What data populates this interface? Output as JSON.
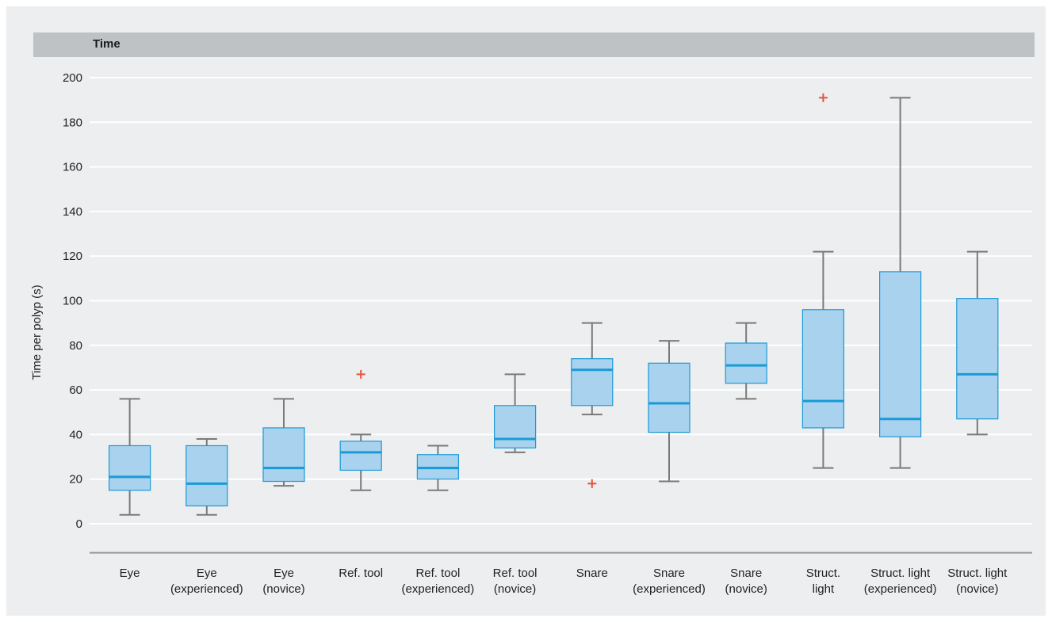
{
  "header": {
    "title": "Time"
  },
  "colors": {
    "box_fill": "#a9d2ee",
    "box_stroke": "#1a9ad6",
    "median": "#1a9ad6",
    "whisker": "#7a7a7a",
    "outlier": "#e2553a",
    "grid": "#ffffff",
    "axis": "#999999"
  },
  "chart_data": {
    "type": "box",
    "title": "Time",
    "ylabel": "Time per polyp (s)",
    "xlabel": "",
    "ylim": [
      -13,
      207
    ],
    "yticks": [
      0,
      20,
      40,
      60,
      80,
      100,
      120,
      140,
      160,
      180,
      200
    ],
    "grid": true,
    "legend": "none",
    "categories": [
      [
        "Eye"
      ],
      [
        "Eye",
        "(experienced)"
      ],
      [
        "Eye",
        "(novice)"
      ],
      [
        "Ref. tool"
      ],
      [
        "Ref. tool",
        "(experienced)"
      ],
      [
        "Ref. tool",
        "(novice)"
      ],
      [
        "Snare"
      ],
      [
        "Snare",
        "(experienced)"
      ],
      [
        "Snare",
        "(novice)"
      ],
      [
        "Struct.",
        "light"
      ],
      [
        "Struct. light",
        "(experienced)"
      ],
      [
        "Struct. light",
        "(novice)"
      ]
    ],
    "boxes": [
      {
        "whisker_low": 4,
        "q1": 15,
        "median": 21,
        "q3": 35,
        "whisker_high": 56,
        "outliers": []
      },
      {
        "whisker_low": 4,
        "q1": 8,
        "median": 18,
        "q3": 35,
        "whisker_high": 38,
        "outliers": []
      },
      {
        "whisker_low": 17,
        "q1": 19,
        "median": 25,
        "q3": 43,
        "whisker_high": 56,
        "outliers": []
      },
      {
        "whisker_low": 15,
        "q1": 24,
        "median": 32,
        "q3": 37,
        "whisker_high": 40,
        "outliers": [
          67
        ]
      },
      {
        "whisker_low": 15,
        "q1": 20,
        "median": 25,
        "q3": 31,
        "whisker_high": 35,
        "outliers": []
      },
      {
        "whisker_low": 32,
        "q1": 34,
        "median": 38,
        "q3": 53,
        "whisker_high": 67,
        "outliers": []
      },
      {
        "whisker_low": 49,
        "q1": 53,
        "median": 69,
        "q3": 74,
        "whisker_high": 90,
        "outliers": [
          18
        ]
      },
      {
        "whisker_low": 19,
        "q1": 41,
        "median": 54,
        "q3": 72,
        "whisker_high": 82,
        "outliers": []
      },
      {
        "whisker_low": 56,
        "q1": 63,
        "median": 71,
        "q3": 81,
        "whisker_high": 90,
        "outliers": []
      },
      {
        "whisker_low": 25,
        "q1": 43,
        "median": 55,
        "q3": 96,
        "whisker_high": 122,
        "outliers": [
          191
        ]
      },
      {
        "whisker_low": 25,
        "q1": 39,
        "median": 47,
        "q3": 113,
        "whisker_high": 191,
        "outliers": []
      },
      {
        "whisker_low": 40,
        "q1": 47,
        "median": 67,
        "q3": 101,
        "whisker_high": 122,
        "outliers": []
      }
    ]
  }
}
